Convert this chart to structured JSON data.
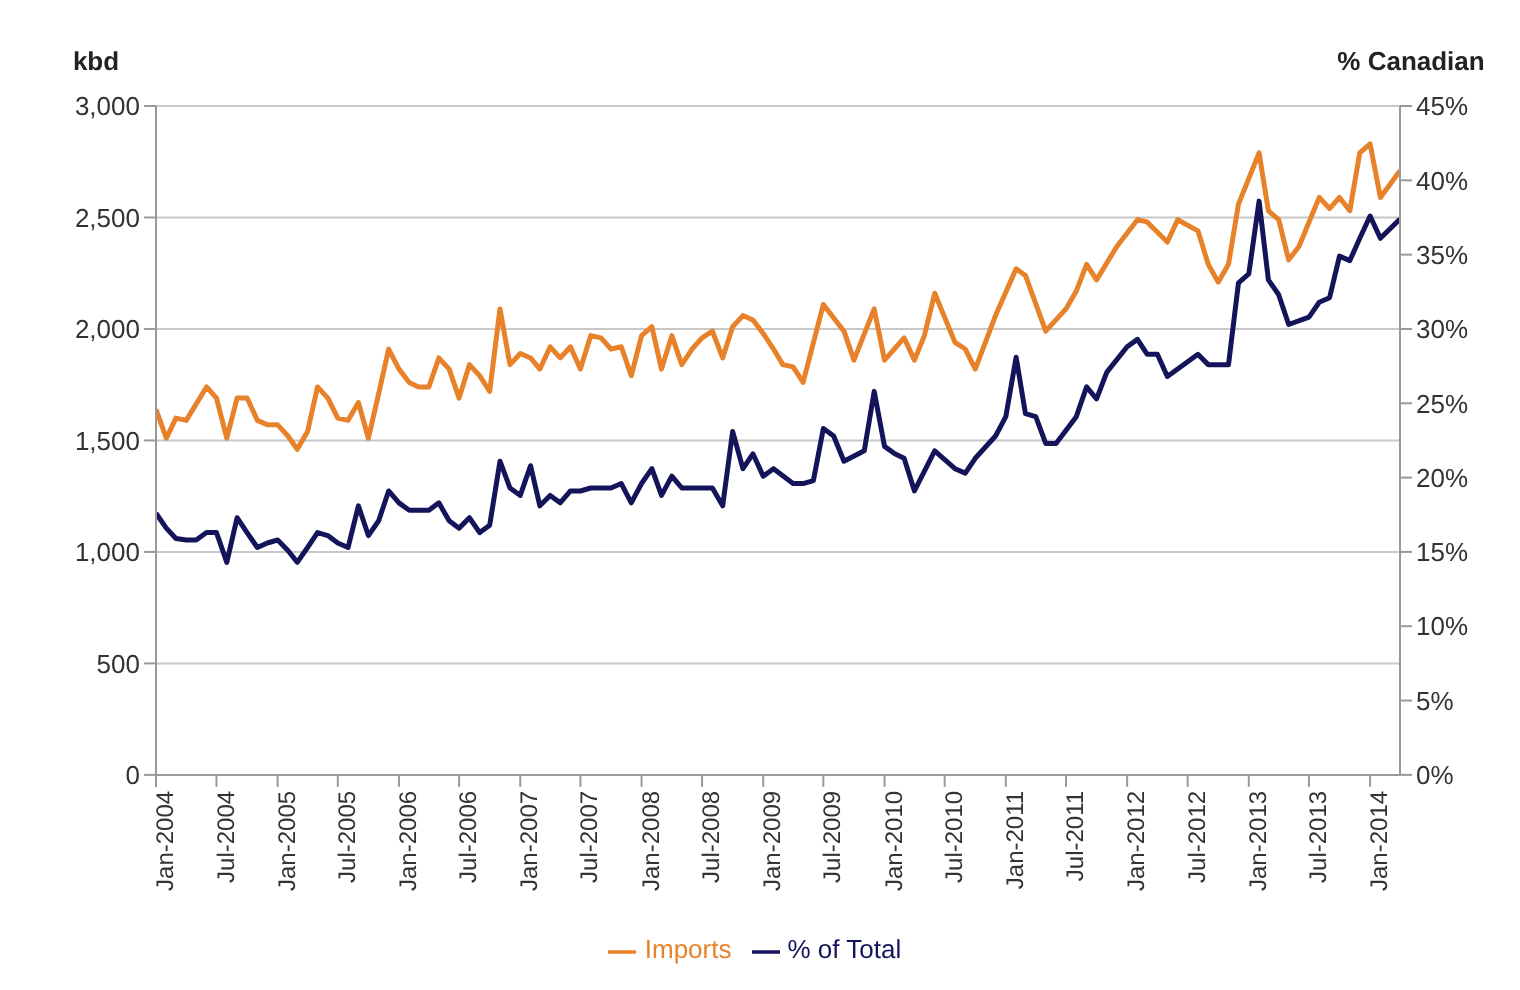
{
  "chart_data": {
    "type": "line",
    "ylabel": "kbd",
    "y2label": "% Canadian",
    "legend": "bottom",
    "grid": "y",
    "marker": "none",
    "line_style": "solid",
    "xlim": [
      "2004-01",
      "2014-04"
    ],
    "xticks": [
      {
        "value": "2004-01",
        "label": "Jan-2004"
      },
      {
        "value": "2004-07",
        "label": "Jul-2004"
      },
      {
        "value": "2005-01",
        "label": "Jan-2005"
      },
      {
        "value": "2005-07",
        "label": "Jul-2005"
      },
      {
        "value": "2006-01",
        "label": "Jan-2006"
      },
      {
        "value": "2006-07",
        "label": "Jul-2006"
      },
      {
        "value": "2007-01",
        "label": "Jan-2007"
      },
      {
        "value": "2007-07",
        "label": "Jul-2007"
      },
      {
        "value": "2008-01",
        "label": "Jan-2008"
      },
      {
        "value": "2008-07",
        "label": "Jul-2008"
      },
      {
        "value": "2009-01",
        "label": "Jan-2009"
      },
      {
        "value": "2009-07",
        "label": "Jul-2009"
      },
      {
        "value": "2010-01",
        "label": "Jan-2010"
      },
      {
        "value": "2010-07",
        "label": "Jul-2010"
      },
      {
        "value": "2011-01",
        "label": "Jan-2011"
      },
      {
        "value": "2011-07",
        "label": "Jul-2011"
      },
      {
        "value": "2012-01",
        "label": "Jan-2012"
      },
      {
        "value": "2012-07",
        "label": "Jul-2012"
      },
      {
        "value": "2013-01",
        "label": "Jan-2013"
      },
      {
        "value": "2013-07",
        "label": "Jul-2013"
      },
      {
        "value": "2014-01",
        "label": "Jan-2014"
      }
    ],
    "ylim": [
      0,
      3000
    ],
    "yticks": [
      0,
      500,
      {
        "value": 1000,
        "label": "1,000"
      },
      {
        "value": 1500,
        "label": "1,500"
      },
      {
        "value": 2000,
        "label": "2,000"
      },
      {
        "value": 2500,
        "label": "2,500"
      },
      {
        "value": 3000,
        "label": "3,000"
      }
    ],
    "y2lim": [
      0,
      45
    ],
    "y2ticks": [
      {
        "value": 0,
        "label": "0%"
      },
      {
        "value": 5,
        "label": "5%"
      },
      {
        "value": 10,
        "label": "10%"
      },
      {
        "value": 15,
        "label": "15%"
      },
      {
        "value": 20,
        "label": "20%"
      },
      {
        "value": 25,
        "label": "25%"
      },
      {
        "value": 30,
        "label": "30%"
      },
      {
        "value": 35,
        "label": "35%"
      },
      {
        "value": 40,
        "label": "40%"
      },
      {
        "value": 45,
        "label": "45%"
      }
    ],
    "series": [
      {
        "name": "Imports",
        "color": "#e8822a",
        "x": [
          "2004-01",
          "2004-02",
          "2004-03",
          "2004-04",
          "2004-06",
          "2004-07",
          "2004-08",
          "2004-09",
          "2004-10",
          "2004-11",
          "2004-12",
          "2005-01",
          "2005-02",
          "2005-03",
          "2005-04",
          "2005-05",
          "2005-06",
          "2005-07",
          "2005-08",
          "2005-09",
          "2005-10",
          "2005-11",
          "2005-12",
          "2006-01",
          "2006-02",
          "2006-03",
          "2006-04",
          "2006-05",
          "2006-06",
          "2006-07",
          "2006-08",
          "2006-09",
          "2006-10",
          "2006-11",
          "2006-12",
          "2007-01",
          "2007-02",
          "2007-03",
          "2007-04",
          "2007-05",
          "2007-06",
          "2007-07",
          "2007-08",
          "2007-09",
          "2007-10",
          "2007-11",
          "2007-12",
          "2008-01",
          "2008-02",
          "2008-03",
          "2008-04",
          "2008-05",
          "2008-06",
          "2008-07",
          "2008-08",
          "2008-09",
          "2008-10",
          "2008-11",
          "2008-12",
          "2009-01",
          "2009-02",
          "2009-03",
          "2009-04",
          "2009-05",
          "2009-07",
          "2009-09",
          "2009-10",
          "2009-12",
          "2010-01",
          "2010-03",
          "2010-04",
          "2010-05",
          "2010-06",
          "2010-08",
          "2010-09",
          "2010-10",
          "2010-12",
          "2011-02",
          "2011-03",
          "2011-05",
          "2011-07",
          "2011-08",
          "2011-09",
          "2011-10",
          "2011-12",
          "2012-02",
          "2012-03",
          "2012-05",
          "2012-06",
          "2012-08",
          "2012-09",
          "2012-10",
          "2012-11",
          "2012-12",
          "2013-02",
          "2013-03",
          "2013-04",
          "2013-05",
          "2013-06",
          "2013-08",
          "2013-09",
          "2013-10",
          "2013-11",
          "2013-12",
          "2014-01",
          "2014-02",
          "2014-04"
        ],
        "values": [
          1640,
          1510,
          1600,
          1590,
          1740,
          1690,
          1510,
          1690,
          1690,
          1590,
          1570,
          1570,
          1520,
          1460,
          1540,
          1740,
          1690,
          1600,
          1590,
          1670,
          1510,
          1710,
          1910,
          1820,
          1760,
          1740,
          1740,
          1870,
          1820,
          1690,
          1840,
          1790,
          1720,
          2090,
          1840,
          1890,
          1870,
          1820,
          1920,
          1870,
          1920,
          1820,
          1970,
          1960,
          1910,
          1920,
          1790,
          1970,
          2010,
          1820,
          1970,
          1840,
          1910,
          1960,
          1990,
          1870,
          2010,
          2060,
          2040,
          1980,
          1910,
          1840,
          1830,
          1760,
          2110,
          1990,
          1860,
          2090,
          1860,
          1960,
          1860,
          1970,
          2160,
          1940,
          1910,
          1820,
          2060,
          2270,
          2240,
          1990,
          2090,
          2170,
          2290,
          2220,
          2370,
          2490,
          2480,
          2390,
          2490,
          2440,
          2290,
          2210,
          2290,
          2560,
          2790,
          2530,
          2490,
          2310,
          2370,
          2590,
          2540,
          2590,
          2530,
          2790,
          2830,
          2590,
          2710
        ]
      },
      {
        "name": "% of Total",
        "color": "#14145a",
        "axis": "y2",
        "x": [
          "2004-01",
          "2004-02",
          "2004-03",
          "2004-04",
          "2004-05",
          "2004-06",
          "2004-07",
          "2004-08",
          "2004-09",
          "2004-10",
          "2004-11",
          "2004-12",
          "2005-01",
          "2005-02",
          "2005-03",
          "2005-04",
          "2005-05",
          "2005-06",
          "2005-07",
          "2005-08",
          "2005-09",
          "2005-10",
          "2005-11",
          "2005-12",
          "2006-01",
          "2006-02",
          "2006-03",
          "2006-04",
          "2006-05",
          "2006-06",
          "2006-07",
          "2006-08",
          "2006-09",
          "2006-10",
          "2006-11",
          "2006-12",
          "2007-01",
          "2007-02",
          "2007-03",
          "2007-04",
          "2007-05",
          "2007-06",
          "2007-07",
          "2007-08",
          "2007-09",
          "2007-10",
          "2007-11",
          "2007-12",
          "2008-01",
          "2008-02",
          "2008-03",
          "2008-04",
          "2008-05",
          "2008-06",
          "2008-07",
          "2008-08",
          "2008-09",
          "2008-10",
          "2008-11",
          "2008-12",
          "2009-01",
          "2009-02",
          "2009-04",
          "2009-05",
          "2009-06",
          "2009-07",
          "2009-08",
          "2009-09",
          "2009-11",
          "2009-12",
          "2010-01",
          "2010-02",
          "2010-03",
          "2010-04",
          "2010-06",
          "2010-08",
          "2010-09",
          "2010-10",
          "2010-12",
          "2011-01",
          "2011-02",
          "2011-03",
          "2011-04",
          "2011-05",
          "2011-06",
          "2011-08",
          "2011-09",
          "2011-10",
          "2011-11",
          "2012-01",
          "2012-02",
          "2012-03",
          "2012-04",
          "2012-05",
          "2012-07",
          "2012-08",
          "2012-09",
          "2012-11",
          "2012-12",
          "2013-01",
          "2013-02",
          "2013-03",
          "2013-04",
          "2013-05",
          "2013-07",
          "2013-08",
          "2013-09",
          "2013-10",
          "2013-11",
          "2013-12",
          "2014-01",
          "2014-02",
          "2014-04"
        ],
        "values": [
          17.6,
          16.6,
          15.9,
          15.8,
          15.8,
          16.3,
          16.3,
          14.3,
          17.3,
          16.3,
          15.3,
          15.6,
          15.8,
          15.1,
          14.3,
          15.3,
          16.3,
          16.1,
          15.6,
          15.3,
          18.1,
          16.1,
          17.1,
          19.1,
          18.3,
          17.8,
          17.8,
          17.8,
          18.3,
          17.1,
          16.6,
          17.3,
          16.3,
          16.8,
          21.1,
          19.3,
          18.8,
          20.8,
          18.1,
          18.8,
          18.3,
          19.1,
          19.1,
          19.3,
          19.3,
          19.3,
          19.6,
          18.3,
          19.6,
          20.6,
          18.8,
          20.1,
          19.3,
          19.3,
          19.3,
          19.3,
          18.1,
          23.1,
          20.6,
          21.6,
          20.1,
          20.6,
          19.6,
          19.6,
          19.8,
          23.3,
          22.8,
          21.1,
          21.8,
          25.8,
          22.1,
          21.6,
          21.3,
          19.1,
          21.8,
          20.6,
          20.3,
          21.3,
          22.8,
          24.1,
          28.1,
          24.3,
          24.1,
          22.3,
          22.3,
          24.1,
          26.1,
          25.3,
          27.1,
          28.8,
          29.3,
          28.3,
          28.3,
          26.8,
          27.8,
          28.3,
          27.6,
          27.6,
          33.1,
          33.7,
          38.6,
          33.3,
          32.3,
          30.3,
          30.8,
          31.8,
          32.1,
          34.9,
          34.6,
          36.1,
          37.6,
          36.1,
          37.4
        ]
      }
    ]
  }
}
